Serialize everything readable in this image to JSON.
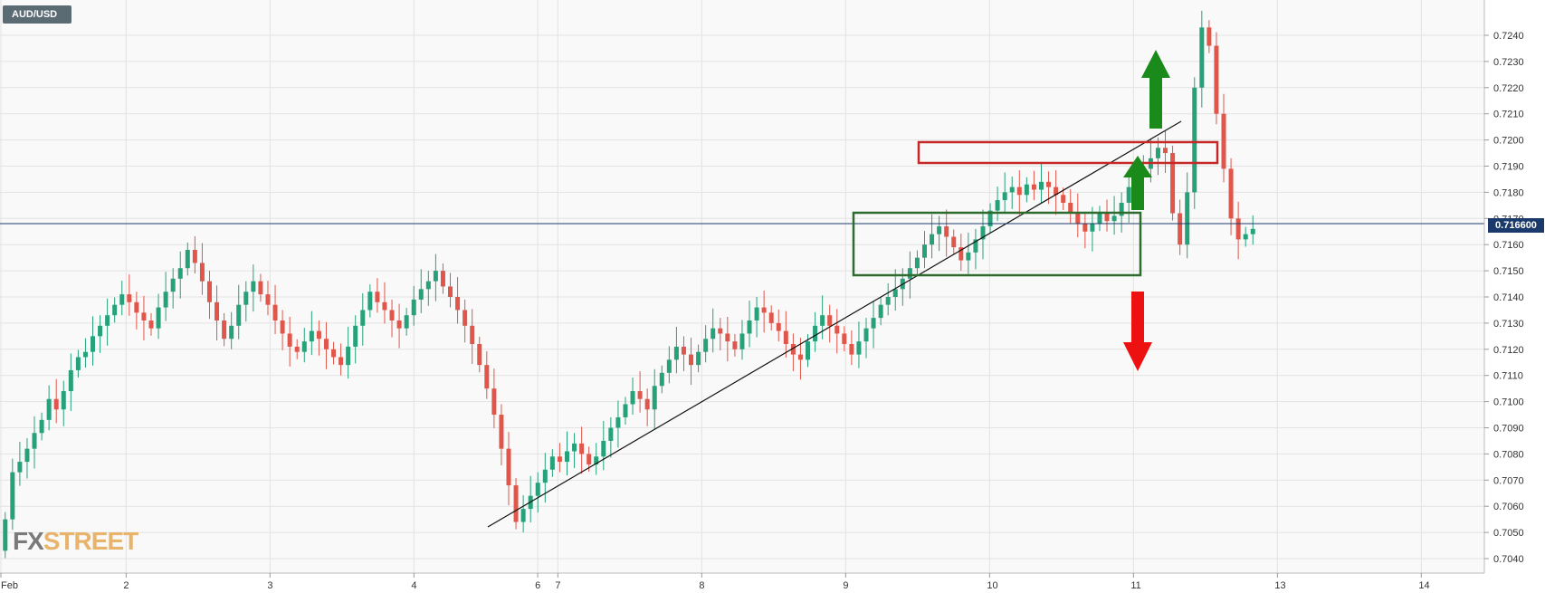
{
  "symbol": "AUD/USD",
  "current_price_label": "0.716600",
  "watermark": {
    "part1": "FX",
    "part2": "STREET"
  },
  "colors": {
    "up": "#26a17a",
    "down": "#e0564b",
    "grid": "#e3e3e3",
    "price_line": "#1a3a6b",
    "resistance_box": "#c62828",
    "support_box": "#2e6b2e",
    "arrow_up": "#1a8a1a",
    "arrow_down": "#ee1111"
  },
  "chart_data": {
    "type": "candlestick",
    "title": "AUD/USD",
    "ylim": [
      0.7036,
      0.725
    ],
    "y_ticks": [
      "0.7040",
      "0.7050",
      "0.7060",
      "0.7070",
      "0.7080",
      "0.7090",
      "0.7100",
      "0.7110",
      "0.7120",
      "0.7130",
      "0.7140",
      "0.7150",
      "0.7160",
      "0.7170",
      "0.7180",
      "0.7190",
      "0.7200",
      "0.7210",
      "0.7220",
      "0.7230",
      "0.7240"
    ],
    "x_ticks": [
      {
        "label": "Feb",
        "day": 1.0
      },
      {
        "label": "2",
        "day": 1.87
      },
      {
        "label": "3",
        "day": 2.87
      },
      {
        "label": "4",
        "day": 3.87
      },
      {
        "label": "6",
        "day": 4.73
      },
      {
        "label": "7",
        "day": 4.87
      },
      {
        "label": "8",
        "day": 5.87
      },
      {
        "label": "9",
        "day": 6.87
      },
      {
        "label": "10",
        "day": 7.87
      },
      {
        "label": "11",
        "day": 8.87
      },
      {
        "label": "13",
        "day": 9.87
      },
      {
        "label": "14",
        "day": 10.87
      }
    ],
    "current_price": 0.7166,
    "series_close": [
      0.7055,
      0.7073,
      0.7077,
      0.7082,
      0.7088,
      0.7093,
      0.7101,
      0.7097,
      0.7104,
      0.7112,
      0.7117,
      0.7119,
      0.7125,
      0.7129,
      0.7133,
      0.7137,
      0.7141,
      0.7138,
      0.7134,
      0.7131,
      0.7128,
      0.7136,
      0.7142,
      0.7147,
      0.7151,
      0.7158,
      0.7153,
      0.7146,
      0.7138,
      0.7131,
      0.7124,
      0.7129,
      0.7137,
      0.7142,
      0.7146,
      0.7141,
      0.7137,
      0.7131,
      0.7126,
      0.7121,
      0.7119,
      0.7123,
      0.7127,
      0.7124,
      0.712,
      0.7117,
      0.7114,
      0.7121,
      0.7129,
      0.7135,
      0.7142,
      0.7138,
      0.7135,
      0.7131,
      0.7128,
      0.7133,
      0.7139,
      0.7143,
      0.7146,
      0.715,
      0.7144,
      0.714,
      0.7135,
      0.7129,
      0.7122,
      0.7114,
      0.7105,
      0.7095,
      0.7082,
      0.7068,
      0.7054,
      0.7059,
      0.7064,
      0.7069,
      0.7074,
      0.7079,
      0.7077,
      0.7081,
      0.7084,
      0.708,
      0.7076,
      0.7079,
      0.7085,
      0.709,
      0.7094,
      0.7099,
      0.7104,
      0.7101,
      0.7097,
      0.7106,
      0.7111,
      0.7116,
      0.7121,
      0.7118,
      0.7114,
      0.7119,
      0.7124,
      0.7128,
      0.7126,
      0.7123,
      0.712,
      0.7126,
      0.7131,
      0.7136,
      0.7134,
      0.713,
      0.7127,
      0.7122,
      0.7118,
      0.7116,
      0.7123,
      0.7129,
      0.7133,
      0.7129,
      0.7126,
      0.7122,
      0.7118,
      0.7123,
      0.7128,
      0.7132,
      0.7137,
      0.714,
      0.7143,
      0.7147,
      0.7151,
      0.7155,
      0.716,
      0.7164,
      0.7167,
      0.7163,
      0.7159,
      0.7154,
      0.7157,
      0.7162,
      0.7167,
      0.7173,
      0.7177,
      0.718,
      0.7182,
      0.7179,
      0.7183,
      0.7181,
      0.7184,
      0.7182,
      0.7179,
      0.7176,
      0.7172,
      0.7168,
      0.7165,
      0.7168,
      0.7172,
      0.7169,
      0.7171,
      0.7176,
      0.7182,
      0.7186,
      0.7189,
      0.7193,
      0.7197,
      0.7195,
      0.7172,
      0.716,
      0.718,
      0.722,
      0.7243,
      0.7236,
      0.721,
      0.7189,
      0.717,
      0.7162,
      0.7164,
      0.7166
    ]
  }
}
